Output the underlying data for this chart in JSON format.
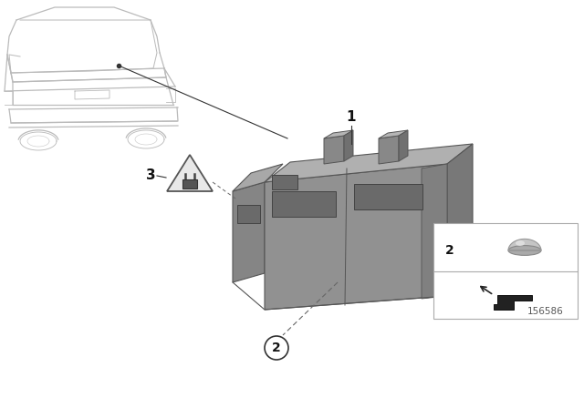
{
  "bg_color": "#ffffff",
  "diagram_number": "156586",
  "car_line_color": "#bbbbbb",
  "unit_front_color": "#909090",
  "unit_top_color": "#b0b0b0",
  "unit_right_color": "#787878",
  "unit_left_color": "#808080",
  "unit_edge_color": "#555555",
  "pin_top_color": "#a0a0a0",
  "pin_front_color": "#888888",
  "slot_color": "#606060",
  "leader_color": "#333333",
  "text_color": "#111111"
}
